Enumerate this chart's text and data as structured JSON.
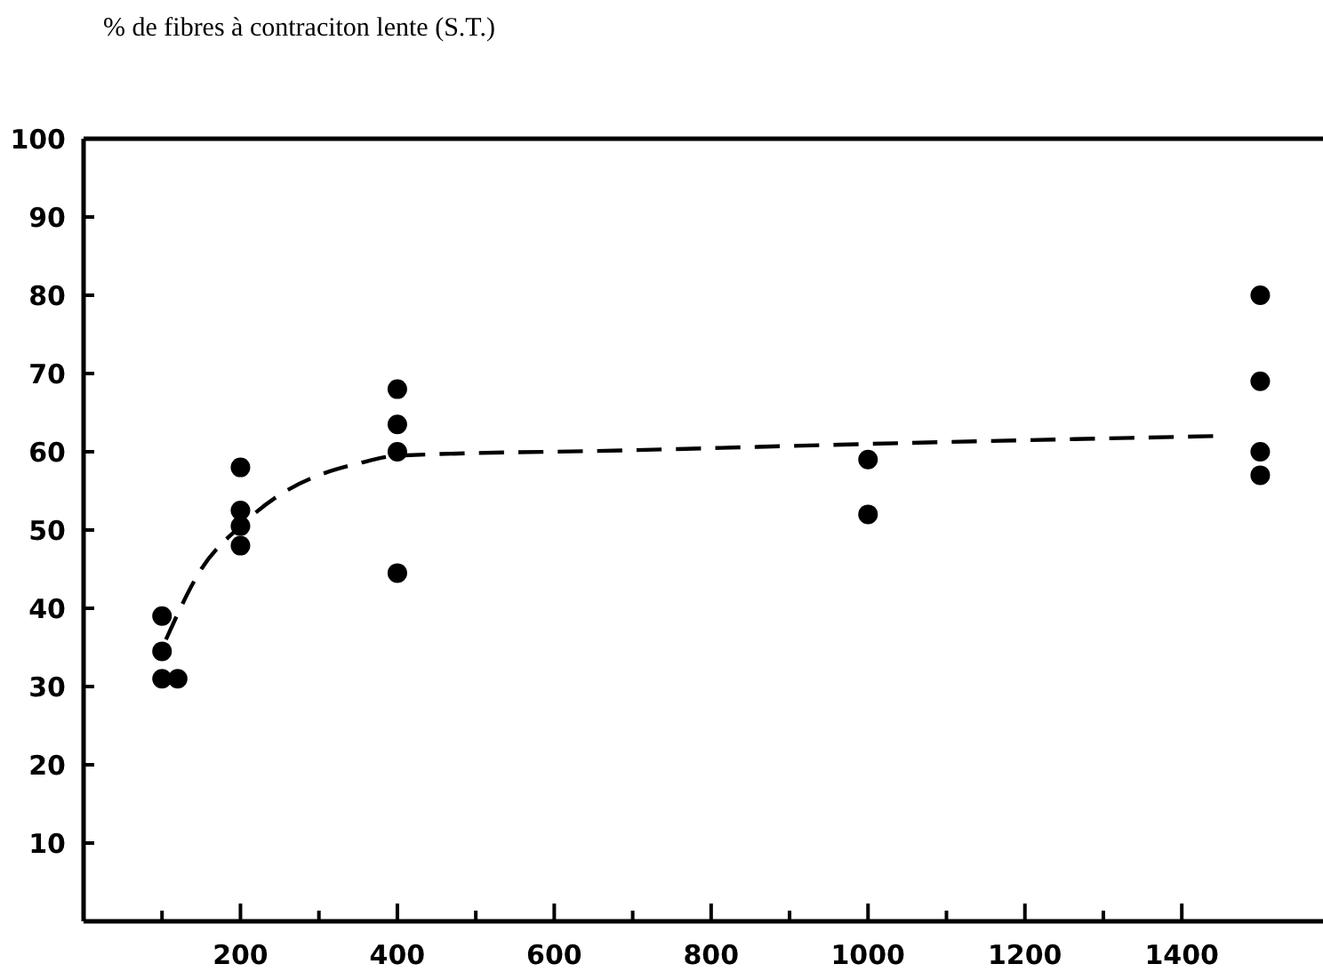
{
  "chart_data": {
    "type": "scatter",
    "ylabel": "% de fibres à contraciton lente (S.T.)",
    "xlim": [
      0,
      1580
    ],
    "xticks": [
      {
        "value": 100,
        "label": null
      },
      200,
      {
        "value": 300,
        "label": null
      },
      400,
      {
        "value": 500,
        "label": null
      },
      600,
      {
        "value": 700,
        "label": null
      },
      800,
      {
        "value": 900,
        "label": null
      },
      1000,
      {
        "value": 1100,
        "label": null
      },
      1200,
      {
        "value": 1300,
        "label": null
      },
      1400
    ],
    "ylim": [
      0,
      100
    ],
    "yticks": [
      10,
      20,
      30,
      40,
      50,
      60,
      70,
      80,
      90,
      100
    ],
    "series": [
      {
        "color": "#000000",
        "marker": "circle",
        "x": [
          100,
          100,
          100,
          120,
          200,
          200,
          200,
          200,
          400,
          400,
          400,
          400,
          1000,
          1000,
          1500,
          1500,
          1500,
          1500
        ],
        "values": [
          39,
          34.5,
          31,
          31,
          58,
          52.5,
          50.5,
          48,
          68,
          63.5,
          60,
          44.5,
          59,
          52,
          80,
          69,
          60,
          57
        ]
      },
      {
        "type": "line",
        "color": "#000000",
        "marker": "none",
        "line_style": "dashed",
        "x": [
          105,
          150,
          200,
          250,
          300,
          350,
          400,
          700,
          1000,
          1440
        ],
        "values": [
          36,
          45,
          50.5,
          54.5,
          57,
          58.5,
          59.5,
          60.2,
          61,
          62
        ]
      }
    ]
  }
}
